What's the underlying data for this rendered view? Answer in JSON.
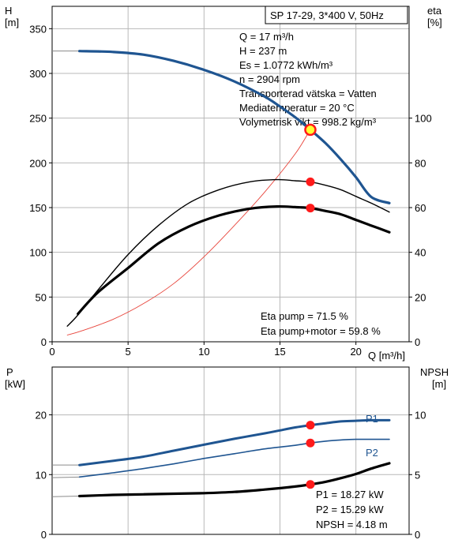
{
  "title": "SP 17-29, 3*400 V, 50Hz",
  "colors": {
    "head": "#1f5591",
    "eta": "#e8453c",
    "marker": "#ff1a1a",
    "op_marker_fill": "#ffff33",
    "grid": "#b8b8b8",
    "p1": "#1f5591",
    "p2": "#1f5591",
    "npsh": "#000000"
  },
  "info": {
    "q": "Q = 17 m³/h",
    "h": "H = 237 m",
    "es": "Es = 1.0772 kWh/m³",
    "n": "n = 2904 rpm",
    "liquid": "Transporterad vätska = Vatten",
    "temp": "Mediatemperatur = 20 °C",
    "density": "Volymetrisk vikt = 998.2 kg/m³"
  },
  "eta_text": {
    "pump": "Eta pump = 71.5 %",
    "pump_motor": "Eta pump+motor = 59.8 %"
  },
  "power_text": {
    "p1": "P1 = 18.27 kW",
    "p2": "P2 = 15.29 kW",
    "npsh": "NPSH = 4.18 m"
  },
  "axes": {
    "h_label": "H",
    "h_unit": "[m]",
    "eta_label": "eta",
    "eta_unit": "[%]",
    "q_label": "Q [m³/h]",
    "p_label": "P",
    "p_unit": "[kW]",
    "npsh_label": "NPSH",
    "npsh_unit": "[m]"
  },
  "chart_data": [
    {
      "type": "line",
      "xlabel": "Q [m³/h]",
      "ylabel": "H [m]",
      "y2label": "eta [%]",
      "xlim": [
        0,
        23.5
      ],
      "ylim": [
        0,
        375
      ],
      "y2lim": [
        0,
        150
      ],
      "xticks": [
        0,
        5,
        10,
        15,
        20
      ],
      "yticks": [
        0,
        50,
        100,
        150,
        200,
        250,
        300,
        350
      ],
      "y2ticks": [
        0,
        20,
        40,
        60,
        80,
        100
      ],
      "grid": true,
      "series": [
        {
          "axis": "H",
          "style": "head",
          "points": [
            [
              0.0,
              325
            ],
            [
              1.8,
              325
            ],
            [
              4,
              324
            ],
            [
              6,
              321
            ],
            [
              8,
              314
            ],
            [
              10,
              304
            ],
            [
              12,
              291
            ],
            [
              14,
              274
            ],
            [
              15,
              263
            ],
            [
              16,
              251
            ],
            [
              17,
              237
            ],
            [
              18,
              222
            ],
            [
              19,
              204
            ],
            [
              20,
              184
            ],
            [
              21,
              162
            ],
            [
              22.2,
              155
            ]
          ]
        },
        {
          "axis": "eta",
          "style": "eta",
          "points": [
            [
              1.0,
              3
            ],
            [
              2,
              5
            ],
            [
              4,
              10
            ],
            [
              6,
              17
            ],
            [
              8,
              26
            ],
            [
              10,
              38
            ],
            [
              12,
              52
            ],
            [
              14,
              67
            ],
            [
              16,
              84
            ],
            [
              17,
              95
            ]
          ]
        },
        {
          "axis": "eta",
          "style": "thin",
          "points": [
            [
              1.0,
              7
            ],
            [
              1.7,
              12
            ],
            [
              3,
              23
            ],
            [
              5,
              39
            ],
            [
              7,
              52
            ],
            [
              9,
              62
            ],
            [
              11,
              68
            ],
            [
              13,
              71.5
            ],
            [
              14.8,
              72.5
            ],
            [
              16,
              72
            ],
            [
              17,
              71.5
            ],
            [
              18,
              70
            ],
            [
              19,
              68
            ],
            [
              20,
              65
            ],
            [
              21,
              62
            ],
            [
              22.2,
              58
            ]
          ]
        },
        {
          "axis": "eta",
          "style": "thick",
          "points": [
            [
              1.7,
              12.5
            ],
            [
              3,
              22
            ],
            [
              5,
              33
            ],
            [
              7,
              44
            ],
            [
              9,
              51.5
            ],
            [
              11,
              56.5
            ],
            [
              13,
              59.5
            ],
            [
              14.8,
              60.5
            ],
            [
              16,
              60.2
            ],
            [
              17,
              59.8
            ],
            [
              18,
              58.5
            ],
            [
              19,
              57
            ],
            [
              20,
              54.5
            ],
            [
              21,
              52
            ],
            [
              22.2,
              49
            ]
          ]
        }
      ],
      "markers": [
        {
          "x": 17,
          "y": 237,
          "axis": "H",
          "kind": "operating"
        },
        {
          "x": 17,
          "y": 71.5,
          "axis": "eta",
          "kind": "dot"
        },
        {
          "x": 17,
          "y": 59.8,
          "axis": "eta",
          "kind": "dot"
        }
      ]
    },
    {
      "type": "line",
      "xlabel": "",
      "ylabel": "P [kW]",
      "y2label": "NPSH [m]",
      "xlim": [
        0,
        23.5
      ],
      "ylim": [
        0,
        28
      ],
      "y2lim": [
        0,
        14
      ],
      "yticks": [
        0,
        10,
        20
      ],
      "y2ticks": [
        0,
        5,
        10
      ],
      "grid": true,
      "series": [
        {
          "name": "P1",
          "axis": "P",
          "style": "p1",
          "points": [
            [
              0.0,
              11.6
            ],
            [
              1.8,
              11.6
            ],
            [
              4,
              12.3
            ],
            [
              6,
              13.0
            ],
            [
              8,
              14.0
            ],
            [
              10,
              15.0
            ],
            [
              12,
              16.0
            ],
            [
              14,
              16.9
            ],
            [
              15,
              17.4
            ],
            [
              16,
              17.9
            ],
            [
              17,
              18.27
            ],
            [
              18,
              18.6
            ],
            [
              19,
              18.9
            ],
            [
              20,
              19.0
            ],
            [
              21,
              19.1
            ],
            [
              22.2,
              19.1
            ]
          ]
        },
        {
          "name": "P2",
          "axis": "P",
          "style": "p2",
          "points": [
            [
              0.0,
              9.5
            ],
            [
              1.8,
              9.6
            ],
            [
              4,
              10.3
            ],
            [
              6,
              11.0
            ],
            [
              8,
              11.8
            ],
            [
              10,
              12.7
            ],
            [
              12,
              13.5
            ],
            [
              14,
              14.3
            ],
            [
              16,
              14.9
            ],
            [
              17,
              15.29
            ],
            [
              18,
              15.6
            ],
            [
              19,
              15.8
            ],
            [
              20,
              15.9
            ],
            [
              22.2,
              15.9
            ]
          ]
        },
        {
          "axis": "NPSH",
          "style": "npsh",
          "points": [
            [
              0.0,
              3.15
            ],
            [
              1.8,
              3.2
            ],
            [
              4,
              3.3
            ],
            [
              6,
              3.35
            ],
            [
              8,
              3.4
            ],
            [
              10,
              3.45
            ],
            [
              12,
              3.55
            ],
            [
              14,
              3.75
            ],
            [
              16,
              4.0
            ],
            [
              17,
              4.18
            ],
            [
              18,
              4.4
            ],
            [
              19,
              4.7
            ],
            [
              20,
              5.05
            ],
            [
              21,
              5.5
            ],
            [
              22.2,
              5.95
            ]
          ]
        }
      ],
      "markers": [
        {
          "x": 17,
          "y": 18.27,
          "axis": "P",
          "kind": "dot"
        },
        {
          "x": 17,
          "y": 15.29,
          "axis": "P",
          "kind": "dot"
        },
        {
          "x": 17,
          "y": 4.18,
          "axis": "NPSH",
          "kind": "dot"
        }
      ]
    }
  ]
}
